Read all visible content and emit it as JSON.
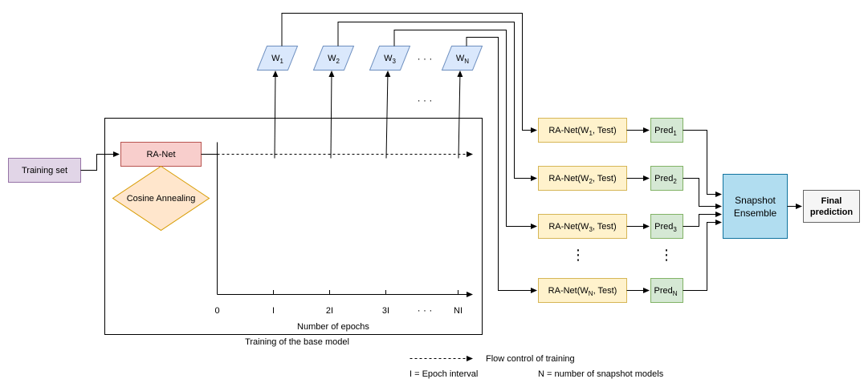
{
  "nodes": {
    "training_set": "Training set",
    "ra_net": "RA-Net",
    "cosine": "Cosine Annealing",
    "snapshot_line1": "Snapshot",
    "snapshot_line2": "Ensemble",
    "final_line1": "Final",
    "final_line2": "prediction",
    "base_model_caption": "Training of the base model"
  },
  "weights": [
    {
      "base": "W",
      "sub": "1"
    },
    {
      "base": "W",
      "sub": "2"
    },
    {
      "base": "W",
      "sub": "3"
    },
    {
      "base": "W",
      "sub": "N"
    }
  ],
  "models": [
    {
      "pre": "RA-Net(W",
      "sub": "1",
      "post": ", Test)"
    },
    {
      "pre": "RA-Net(W",
      "sub": "2",
      "post": ", Test)"
    },
    {
      "pre": "RA-Net(W",
      "sub": "3",
      "post": ", Test)"
    },
    {
      "pre": "RA-Net(W",
      "sub": "N",
      "post": ", Test)"
    }
  ],
  "preds": [
    {
      "base": "Pred",
      "sub": "1"
    },
    {
      "base": "Pred",
      "sub": "2"
    },
    {
      "base": "Pred",
      "sub": "3"
    },
    {
      "base": "Pred",
      "sub": "N"
    }
  ],
  "axis": {
    "ticks": [
      "0",
      "I",
      "2I",
      "3I",
      "NI"
    ],
    "ellipsis": "· · ·",
    "xlabel": "Number of epochs"
  },
  "ellipsis_h": "· · ·",
  "ellipsis_v": "⋮",
  "legend": {
    "flow": "Flow control of training",
    "interval": "I = Epoch interval",
    "n_models": "N = number of snapshot models"
  },
  "colors": {
    "purple_fill": "#e1d5e7",
    "purple_stroke": "#9673a6",
    "red_fill": "#f8cecc",
    "red_stroke": "#b85450",
    "orange_fill": "#ffe6cc",
    "orange_stroke": "#d79b00",
    "blue_fill": "#dae8fc",
    "blue_stroke": "#6c8ebf",
    "yellow_fill": "#fff2cc",
    "yellow_stroke": "#d6b656",
    "green_fill": "#d5e8d4",
    "green_stroke": "#82b366",
    "cyan_fill": "#b1ddf0",
    "cyan_stroke": "#10739e",
    "gray_fill": "#f5f5f5",
    "gray_stroke": "#666666"
  }
}
